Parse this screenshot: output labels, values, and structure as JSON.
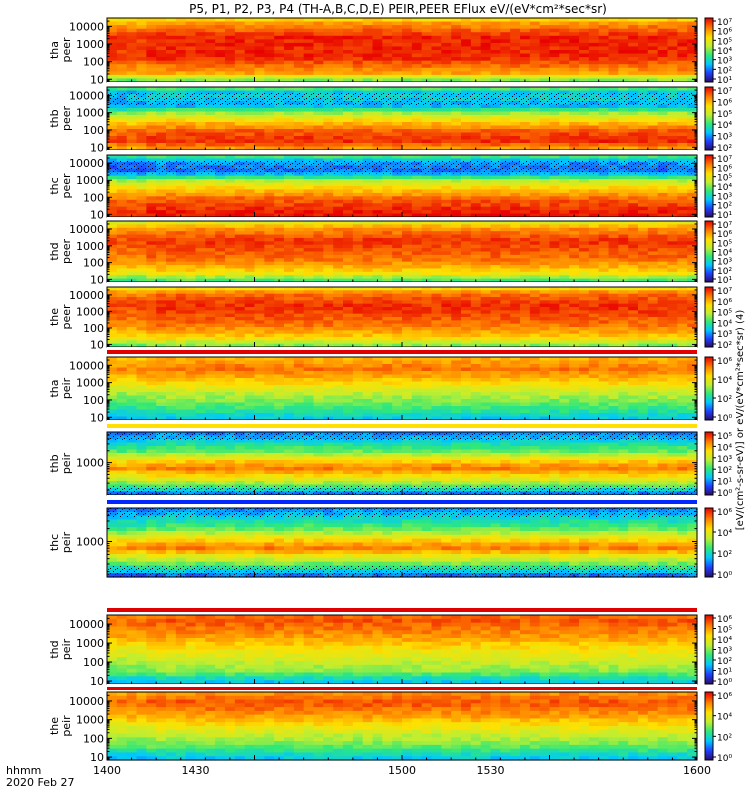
{
  "chart_data": {
    "type": "heatmap",
    "title": "P5, P1, P2, P3, P4 (TH-A,B,C,D,E) PEIR,PEER EFlux eV/(eV*cm²*sec*sr)",
    "x_axis": {
      "label_line1": "hhmm",
      "label_line2": "2020 Feb 27",
      "range": [
        1400,
        1600
      ],
      "ticks": [
        {
          "value": 1400,
          "label": "1400"
        },
        {
          "value": 1430,
          "label": "1430"
        },
        {
          "value": 1500,
          "label": "1500"
        },
        {
          "value": 1530,
          "label": "1530"
        },
        {
          "value": 1600,
          "label": "1600"
        }
      ]
    },
    "colorbar_label": "[eV/(cm²-s-sr-eV)] or eV/(eV*cm²*sec*sr) (4)",
    "panels": [
      {
        "probe": "tha",
        "species": "peer",
        "yrange": [
          7,
          30000
        ],
        "yticks": [
          10,
          100,
          1000,
          10000
        ],
        "ytick_labels": [
          "10",
          "100",
          "1000",
          "10000"
        ],
        "cbar_exps": [
          1,
          2,
          3,
          4,
          5,
          6,
          7
        ],
        "profile": [
          [
            1,
            0.5
          ],
          [
            1.3,
            0.78
          ],
          [
            2.2,
            0.95
          ],
          [
            3.4,
            0.96
          ],
          [
            4.3,
            0.78
          ],
          [
            4.6,
            0.5
          ]
        ]
      },
      {
        "probe": "thb",
        "species": "peer",
        "yrange": [
          7,
          30000
        ],
        "yticks": [
          10,
          100,
          1000,
          10000
        ],
        "ytick_labels": [
          "10",
          "100",
          "1000",
          "10000"
        ],
        "cbar_exps": [
          2,
          3,
          4,
          5,
          6,
          7
        ],
        "profile": [
          [
            1,
            0.8
          ],
          [
            1.3,
            0.95
          ],
          [
            1.9,
            0.9
          ],
          [
            2.5,
            0.72
          ],
          [
            3.0,
            0.52
          ],
          [
            3.4,
            0.25
          ],
          [
            3.9,
            0.32
          ],
          [
            4.2,
            0.3
          ],
          [
            4.5,
            0.55
          ]
        ]
      },
      {
        "probe": "thc",
        "species": "peer",
        "yrange": [
          7,
          30000
        ],
        "yticks": [
          10,
          100,
          1000,
          10000
        ],
        "ytick_labels": [
          "10",
          "100",
          "1000",
          "10000"
        ],
        "cbar_exps": [
          1,
          2,
          3,
          4,
          5,
          6,
          7
        ],
        "profile": [
          [
            1,
            0.98
          ],
          [
            1.3,
            0.95
          ],
          [
            1.9,
            0.88
          ],
          [
            2.5,
            0.72
          ],
          [
            3.0,
            0.55
          ],
          [
            3.3,
            0.3
          ],
          [
            3.6,
            0.18
          ],
          [
            4.1,
            0.25
          ],
          [
            4.5,
            0.5
          ]
        ]
      },
      {
        "probe": "thd",
        "species": "peer",
        "yrange": [
          7,
          30000
        ],
        "yticks": [
          10,
          100,
          1000,
          10000
        ],
        "ytick_labels": [
          "10",
          "100",
          "1000",
          "10000"
        ],
        "cbar_exps": [
          1,
          2,
          3,
          4,
          5,
          6,
          7
        ],
        "profile": [
          [
            1,
            0.45
          ],
          [
            1.4,
            0.7
          ],
          [
            2.2,
            0.86
          ],
          [
            3.3,
            0.94
          ],
          [
            4.1,
            0.8
          ],
          [
            4.5,
            0.55
          ]
        ]
      },
      {
        "probe": "the",
        "species": "peer",
        "yrange": [
          7,
          30000
        ],
        "yticks": [
          10,
          100,
          1000,
          10000
        ],
        "ytick_labels": [
          "10",
          "100",
          "1000",
          "10000"
        ],
        "cbar_exps": [
          2,
          3,
          4,
          5,
          6,
          7
        ],
        "profile": [
          [
            1,
            0.5
          ],
          [
            1.4,
            0.72
          ],
          [
            2.2,
            0.86
          ],
          [
            3.3,
            0.95
          ],
          [
            4.1,
            0.86
          ],
          [
            4.5,
            0.62
          ]
        ]
      },
      {
        "probe": "tha",
        "species": "peir",
        "yrange": [
          7,
          30000
        ],
        "yticks": [
          10,
          100,
          1000,
          10000
        ],
        "ytick_labels": [
          "10",
          "100",
          "1000",
          "10000"
        ],
        "cbar_exps": [
          0,
          2,
          4,
          6
        ],
        "profile": [
          [
            1,
            0.3
          ],
          [
            1.5,
            0.42
          ],
          [
            2.3,
            0.55
          ],
          [
            3.2,
            0.75
          ],
          [
            3.8,
            0.86
          ],
          [
            4.5,
            0.75
          ]
        ]
      },
      {
        "probe": "thb",
        "species": "peir",
        "yrange": [
          150,
          6000
        ],
        "yticks": [
          1000
        ],
        "ytick_labels": [
          "1000"
        ],
        "cbar_exps": [
          0,
          1,
          2,
          3,
          4,
          5
        ],
        "profile": [
          [
            2.18,
            0.15
          ],
          [
            2.35,
            0.4
          ],
          [
            2.6,
            0.65
          ],
          [
            2.85,
            0.85
          ],
          [
            3.05,
            0.72
          ],
          [
            3.25,
            0.5
          ],
          [
            3.55,
            0.32
          ],
          [
            3.78,
            0.2
          ]
        ]
      },
      {
        "probe": "thc",
        "species": "peir",
        "yrange": [
          150,
          6000
        ],
        "yticks": [
          1000
        ],
        "ytick_labels": [
          "1000"
        ],
        "cbar_exps": [
          0,
          2,
          4,
          6
        ],
        "profile": [
          [
            2.18,
            0.15
          ],
          [
            2.35,
            0.35
          ],
          [
            2.6,
            0.6
          ],
          [
            2.85,
            0.85
          ],
          [
            3.05,
            0.7
          ],
          [
            3.25,
            0.5
          ],
          [
            3.55,
            0.32
          ],
          [
            3.78,
            0.2
          ]
        ]
      },
      {
        "probe": "thd",
        "species": "peir",
        "yrange": [
          7,
          30000
        ],
        "yticks": [
          10,
          100,
          1000,
          10000
        ],
        "ytick_labels": [
          "10",
          "100",
          "1000",
          "10000"
        ],
        "cbar_exps": [
          0,
          1,
          2,
          3,
          4,
          5,
          6
        ],
        "profile": [
          [
            1,
            0.3
          ],
          [
            1.5,
            0.5
          ],
          [
            2.3,
            0.62
          ],
          [
            3.3,
            0.8
          ],
          [
            4.2,
            0.9
          ],
          [
            4.5,
            0.85
          ]
        ]
      },
      {
        "probe": "the",
        "species": "peir",
        "yrange": [
          7,
          30000
        ],
        "yticks": [
          10,
          100,
          1000,
          10000
        ],
        "ytick_labels": [
          "10",
          "100",
          "1000",
          "10000"
        ],
        "cbar_exps": [
          0,
          2,
          4,
          6
        ],
        "profile": [
          [
            1,
            0.3
          ],
          [
            1.5,
            0.45
          ],
          [
            2.3,
            0.6
          ],
          [
            3.2,
            0.8
          ],
          [
            3.9,
            0.9
          ],
          [
            4.5,
            0.8
          ]
        ]
      }
    ]
  }
}
